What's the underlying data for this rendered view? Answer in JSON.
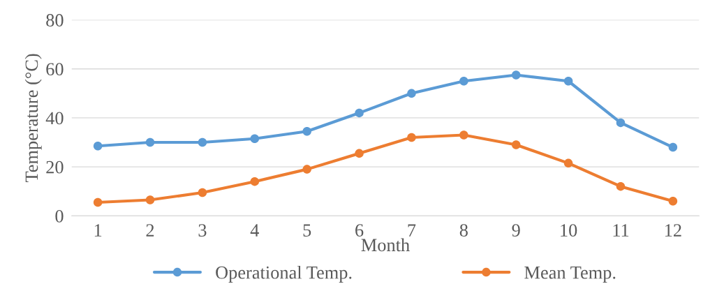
{
  "chart_data": {
    "type": "line",
    "xlabel": "Month",
    "ylabel": "Temperature (°C)",
    "categories": [
      "1",
      "2",
      "3",
      "4",
      "5",
      "6",
      "7",
      "8",
      "9",
      "10",
      "11",
      "12"
    ],
    "series": [
      {
        "name": "Operational Temp.",
        "color": "#5b9bd5",
        "values": [
          28.5,
          30,
          30,
          31.5,
          34.5,
          42,
          50,
          55,
          57.5,
          55,
          38,
          28
        ]
      },
      {
        "name": "Mean Temp.",
        "color": "#ed7d31",
        "values": [
          5.5,
          6.5,
          9.5,
          14,
          19,
          25.5,
          32,
          33,
          29,
          21.5,
          12,
          6
        ]
      }
    ],
    "ylim": [
      0,
      80
    ],
    "yticks": [
      0,
      20,
      40,
      60,
      80
    ],
    "grid": "y",
    "legend": "bottom",
    "marker": "circle",
    "line_style": "solid"
  }
}
